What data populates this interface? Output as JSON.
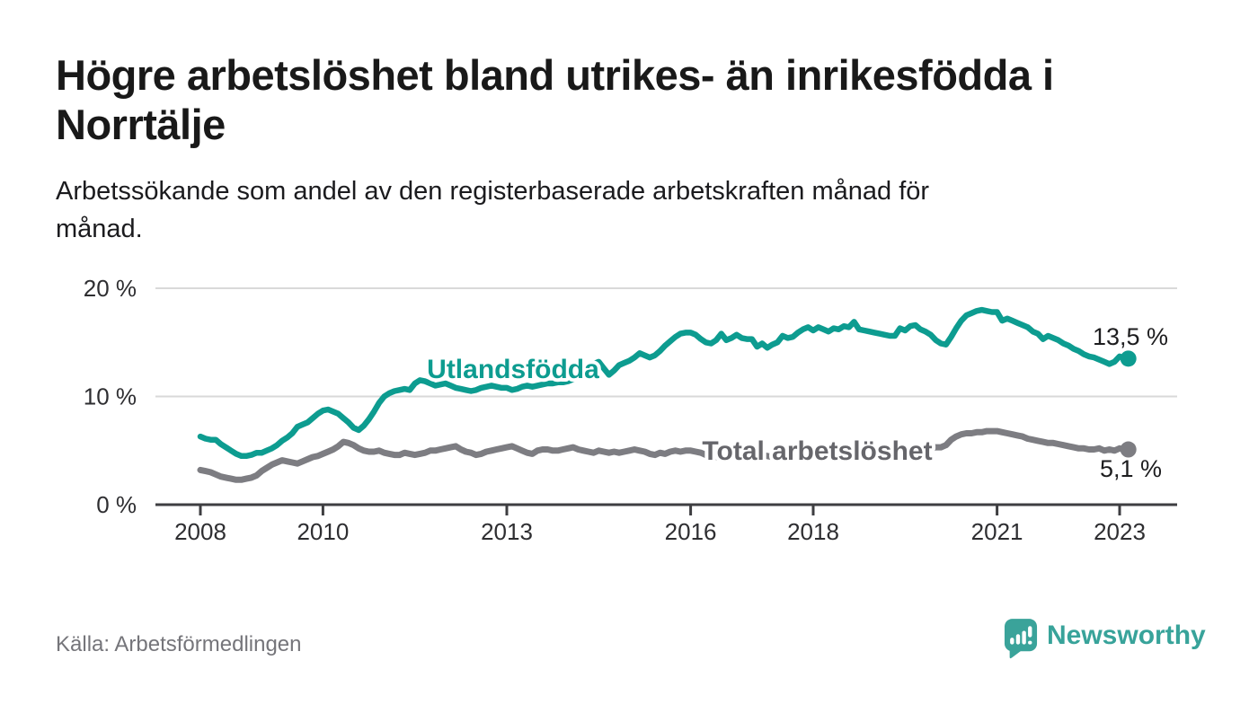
{
  "title": "Högre arbetslöshet bland utrikes- än inrikesfödda i Norrtälje",
  "title_lines": [
    "Högre arbetslöshet bland utrikes- än inrikesfödda i",
    "Norrtälje"
  ],
  "subtitle": "Arbetssökande som andel av den registerbaserade arbetskraften månad för månad.",
  "subtitle_lines": [
    "Arbetssökande som andel av den registerbaserade arbetskraften månad för",
    "månad."
  ],
  "source": "Källa: Arbetsförmedlingen",
  "branding": {
    "logo_text": "Newsworthy",
    "logo_icon": "bar-chart-speech-bubble-icon",
    "brand_color": "#3aa39a"
  },
  "colors": {
    "background": "#ffffff",
    "title_text": "#191919",
    "subtitle_text": "#1b1b1e",
    "axis": "#3e3e41",
    "gridline": "#d9d9d9",
    "tick_label": "#2e2e31",
    "value_label": "#1d1d1f",
    "source_text": "#75757a",
    "series_utlandsfodda": "#0d9c90",
    "series_total": "#7d7d82"
  },
  "chart_data": {
    "type": "line",
    "title": "Högre arbetslöshet bland utrikes- än inrikesfödda i Norrtälje",
    "subtitle": "Arbetssökande som andel av den registerbaserade arbetskraften månad för månad.",
    "unit": "%",
    "frequency": "monthly",
    "x_start": "2008-01",
    "x_end": "2023-02",
    "x_ticks": [
      "2008",
      "2010",
      "2013",
      "2016",
      "2018",
      "2021",
      "2023"
    ],
    "y_ticks": [
      "0 %",
      "10 %",
      "20 %"
    ],
    "ylim": [
      0,
      21
    ],
    "grid": "horizontal",
    "legend_position": "inline-labels",
    "series": [
      {
        "name": "Utlandsfödda",
        "color": "#0d9c90",
        "label_color": "#0d9c90",
        "end_label": "13,5 %",
        "end_value": 13.5,
        "values": [
          6.3,
          6.1,
          6.0,
          6.0,
          5.6,
          5.3,
          5.0,
          4.7,
          4.5,
          4.5,
          4.6,
          4.8,
          4.8,
          5.0,
          5.2,
          5.5,
          5.9,
          6.2,
          6.6,
          7.2,
          7.4,
          7.6,
          8.0,
          8.4,
          8.7,
          8.8,
          8.6,
          8.4,
          8.0,
          7.6,
          7.1,
          6.9,
          7.3,
          7.9,
          8.6,
          9.4,
          10.0,
          10.3,
          10.5,
          10.6,
          10.7,
          10.6,
          11.2,
          11.5,
          11.4,
          11.2,
          11.0,
          11.1,
          11.2,
          11.0,
          10.8,
          10.7,
          10.6,
          10.5,
          10.6,
          10.8,
          10.9,
          11.0,
          10.9,
          10.8,
          10.8,
          10.6,
          10.7,
          10.9,
          11.0,
          10.9,
          11.0,
          11.1,
          11.2,
          11.2,
          11.3,
          11.3,
          11.4,
          11.6,
          11.9,
          12.2,
          12.6,
          13.0,
          13.2,
          12.6,
          12.0,
          12.4,
          12.9,
          13.1,
          13.3,
          13.6,
          14.0,
          13.8,
          13.6,
          13.8,
          14.2,
          14.7,
          15.1,
          15.5,
          15.8,
          15.9,
          15.9,
          15.7,
          15.3,
          15.0,
          14.9,
          15.2,
          15.8,
          15.2,
          15.4,
          15.7,
          15.4,
          15.3,
          15.3,
          14.6,
          14.9,
          14.5,
          14.8,
          15.0,
          15.6,
          15.4,
          15.5,
          15.9,
          16.2,
          16.4,
          16.1,
          16.4,
          16.2,
          16.0,
          16.3,
          16.2,
          16.5,
          16.4,
          16.9,
          16.2,
          16.1,
          16.0,
          15.9,
          15.8,
          15.7,
          15.6,
          15.6,
          16.3,
          16.1,
          16.5,
          16.6,
          16.2,
          16.0,
          15.7,
          15.2,
          14.9,
          14.8,
          15.5,
          16.3,
          17.0,
          17.5,
          17.7,
          17.9,
          18.0,
          17.9,
          17.8,
          17.8,
          17.0,
          17.2,
          17.0,
          16.8,
          16.6,
          16.4,
          16.0,
          15.8,
          15.3,
          15.6,
          15.4,
          15.2,
          14.9,
          14.7,
          14.4,
          14.2,
          13.9,
          13.7,
          13.6,
          13.4,
          13.2,
          13.0,
          13.2,
          13.7,
          13.5
        ]
      },
      {
        "name": "Total arbetslöshet",
        "color": "#7d7d82",
        "label_color": "#66666b",
        "end_label": "5,1 %",
        "end_value": 5.1,
        "values": [
          3.2,
          3.1,
          3.0,
          2.8,
          2.6,
          2.5,
          2.4,
          2.3,
          2.3,
          2.4,
          2.5,
          2.7,
          3.1,
          3.4,
          3.7,
          3.9,
          4.1,
          4.0,
          3.9,
          3.8,
          4.0,
          4.2,
          4.4,
          4.5,
          4.7,
          4.9,
          5.1,
          5.4,
          5.8,
          5.7,
          5.5,
          5.2,
          5.0,
          4.9,
          4.9,
          5.0,
          4.8,
          4.7,
          4.6,
          4.6,
          4.8,
          4.7,
          4.6,
          4.7,
          4.8,
          5.0,
          5.0,
          5.1,
          5.2,
          5.3,
          5.4,
          5.1,
          4.9,
          4.8,
          4.6,
          4.7,
          4.9,
          5.0,
          5.1,
          5.2,
          5.3,
          5.4,
          5.2,
          5.0,
          4.8,
          4.7,
          5.0,
          5.1,
          5.1,
          5.0,
          5.0,
          5.1,
          5.2,
          5.3,
          5.1,
          5.0,
          4.9,
          4.8,
          5.0,
          4.9,
          4.8,
          4.9,
          4.8,
          4.9,
          5.0,
          5.1,
          5.0,
          4.9,
          4.7,
          4.6,
          4.8,
          4.7,
          4.9,
          5.0,
          4.9,
          5.0,
          5.0,
          4.9,
          4.8,
          4.6,
          4.5,
          4.4,
          4.6,
          4.5,
          4.7,
          4.8,
          4.7,
          4.8,
          4.8,
          4.7,
          4.6,
          4.5,
          4.4,
          4.5,
          4.7,
          4.6,
          4.7,
          4.8,
          4.9,
          5.0,
          4.9,
          4.8,
          4.7,
          4.6,
          4.5,
          4.6,
          4.8,
          4.7,
          4.6,
          4.7,
          4.8,
          4.9,
          5.0,
          4.9,
          4.8,
          4.8,
          4.7,
          4.8,
          5.0,
          4.9,
          5.0,
          5.1,
          5.1,
          5.2,
          5.3,
          5.3,
          5.5,
          6.0,
          6.3,
          6.5,
          6.6,
          6.6,
          6.7,
          6.7,
          6.8,
          6.8,
          6.8,
          6.7,
          6.6,
          6.5,
          6.4,
          6.3,
          6.1,
          6.0,
          5.9,
          5.8,
          5.7,
          5.7,
          5.6,
          5.5,
          5.4,
          5.3,
          5.2,
          5.2,
          5.1,
          5.1,
          5.2,
          5.0,
          5.1,
          5.0,
          5.2,
          5.1
        ]
      }
    ]
  }
}
